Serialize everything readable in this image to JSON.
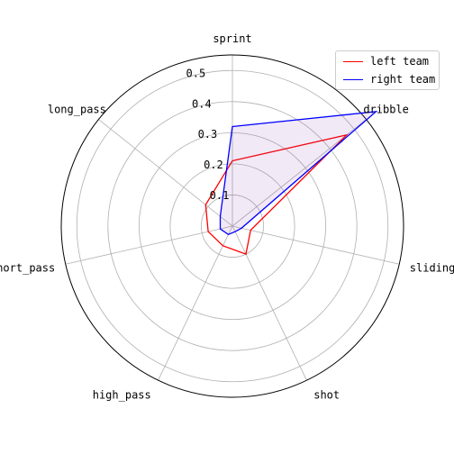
{
  "chart_data": {
    "type": "radar",
    "title": "",
    "categories": [
      "sprint",
      "dribble",
      "sliding",
      "shot",
      "high_pass",
      "short_pass",
      "long_pass"
    ],
    "rlim": [
      0,
      0.55
    ],
    "r_ticks": [
      0.1,
      0.2,
      0.3,
      0.4,
      0.5
    ],
    "r_tick_labels": [
      "0.1",
      "0.2",
      "0.3",
      "0.4",
      "0.5"
    ],
    "grid": true,
    "legend_position": "top-right",
    "series": [
      {
        "name": "left team",
        "color": "#ff0000",
        "values": [
          0.21,
          0.47,
          0.06,
          0.1,
          0.07,
          0.08,
          0.11
        ]
      },
      {
        "name": "right team",
        "color": "#0000ff",
        "values": [
          0.32,
          0.59,
          0.03,
          0.02,
          0.03,
          0.04,
          0.05
        ]
      }
    ]
  }
}
